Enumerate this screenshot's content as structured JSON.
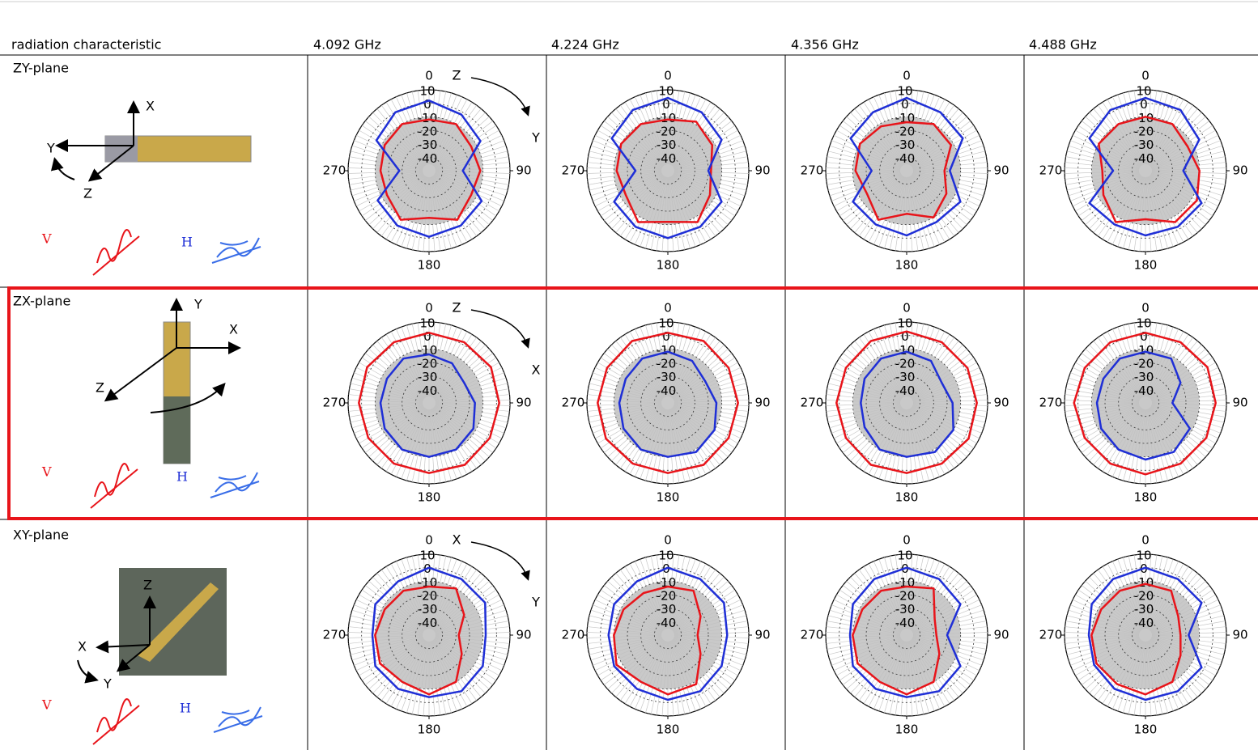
{
  "table": {
    "header": [
      "radiation characteristic",
      "4.092  GHz",
      "4.224  GHz",
      "4.356  GHz",
      "4.488  GHz"
    ],
    "rows": [
      {
        "label": "ZY-plane",
        "diagram_labels": [
          "X",
          "Y",
          "Z"
        ]
      },
      {
        "label": "ZX-plane",
        "diagram_labels": [
          "Y",
          "X",
          "Z"
        ]
      },
      {
        "label": "XY-plane",
        "diagram_labels": [
          "Z",
          "X",
          "Y"
        ]
      }
    ]
  },
  "chart_data": [
    {
      "type": "polar",
      "annotations": [
        "Z",
        "Y"
      ],
      "rlim": [
        -50,
        10
      ],
      "rticks": [
        10,
        0,
        -10,
        -20,
        -30,
        -40
      ],
      "thetaticks": [
        0,
        90,
        180,
        270
      ],
      "x": [
        0,
        30,
        60,
        90,
        120,
        150,
        180,
        210,
        240,
        270,
        300,
        330
      ],
      "series": [
        {
          "name": "V",
          "color": "#e8141a",
          "values": [
            -12,
            -10,
            -14,
            -12,
            -14,
            -8,
            -15,
            -8,
            -14,
            -14,
            -12,
            -10
          ]
        },
        {
          "name": "H",
          "color": "#1f2fd6",
          "values": [
            2,
            -2,
            -6,
            -25,
            -5,
            -3,
            -1,
            -3,
            -6,
            -28,
            -5,
            0
          ]
        }
      ]
    },
    {
      "type": "polar",
      "rlim": [
        -50,
        10
      ],
      "rticks": [
        10,
        0,
        -10,
        -20,
        -30,
        -40
      ],
      "thetaticks": [
        0,
        90,
        180,
        270
      ],
      "x": [
        0,
        30,
        60,
        90,
        120,
        150,
        180,
        210,
        240,
        270,
        300,
        330
      ],
      "series": [
        {
          "name": "V",
          "color": "#e8141a",
          "values": [
            -12,
            -8,
            -12,
            -18,
            -14,
            -6,
            -12,
            -6,
            -14,
            -12,
            -10,
            -10
          ]
        },
        {
          "name": "H",
          "color": "#1f2fd6",
          "values": [
            4,
            0,
            -4,
            -20,
            -4,
            -2,
            0,
            -2,
            -4,
            -26,
            -2,
            2
          ]
        }
      ]
    },
    {
      "type": "polar",
      "rlim": [
        -50,
        10
      ],
      "rticks": [
        10,
        0,
        -10,
        -20,
        -30,
        -40
      ],
      "thetaticks": [
        0,
        90,
        180,
        270
      ],
      "x": [
        0,
        30,
        60,
        90,
        120,
        150,
        180,
        210,
        240,
        270,
        300,
        330
      ],
      "series": [
        {
          "name": "V",
          "color": "#e8141a",
          "values": [
            -14,
            -10,
            -12,
            -22,
            -16,
            -10,
            -18,
            -8,
            -16,
            -12,
            -10,
            -12
          ]
        },
        {
          "name": "H",
          "color": "#1f2fd6",
          "values": [
            4,
            0,
            -2,
            -18,
            -4,
            -6,
            -2,
            -4,
            -4,
            -24,
            -2,
            0
          ]
        }
      ]
    },
    {
      "type": "polar",
      "rlim": [
        -50,
        10
      ],
      "rticks": [
        10,
        0,
        -10,
        -20,
        -30,
        -40
      ],
      "thetaticks": [
        0,
        90,
        180,
        270
      ],
      "x": [
        0,
        30,
        60,
        90,
        120,
        150,
        180,
        210,
        240,
        270,
        300,
        330
      ],
      "series": [
        {
          "name": "V",
          "color": "#e8141a",
          "values": [
            -10,
            -10,
            -14,
            -10,
            -6,
            -6,
            -14,
            -6,
            -14,
            -18,
            -10,
            -10
          ]
        },
        {
          "name": "H",
          "color": "#1f2fd6",
          "values": [
            4,
            2,
            -4,
            -22,
            -2,
            -2,
            -2,
            -4,
            -2,
            -26,
            -2,
            2
          ]
        }
      ]
    },
    {
      "type": "polar",
      "annotations": [
        "Z",
        "X"
      ],
      "rlim": [
        -50,
        10
      ],
      "rticks": [
        10,
        0,
        -10,
        -20,
        -30,
        -40
      ],
      "thetaticks": [
        0,
        90,
        180,
        270
      ],
      "x": [
        0,
        30,
        60,
        90,
        120,
        150,
        180,
        210,
        240,
        270,
        300,
        330
      ],
      "series": [
        {
          "name": "V",
          "color": "#e8141a",
          "values": [
            2,
            2,
            3,
            2,
            2,
            3,
            2,
            2,
            2,
            2,
            3,
            2
          ]
        },
        {
          "name": "H",
          "color": "#1f2fd6",
          "values": [
            -14,
            -16,
            -20,
            -16,
            -12,
            -10,
            -10,
            -10,
            -12,
            -14,
            -14,
            -12
          ]
        }
      ]
    },
    {
      "type": "polar",
      "rlim": [
        -50,
        10
      ],
      "rticks": [
        10,
        0,
        -10,
        -20,
        -30,
        -40
      ],
      "thetaticks": [
        0,
        90,
        180,
        270
      ],
      "x": [
        0,
        30,
        60,
        90,
        120,
        150,
        180,
        210,
        240,
        270,
        300,
        330
      ],
      "series": [
        {
          "name": "V",
          "color": "#e8141a",
          "values": [
            2,
            3,
            2,
            2,
            2,
            3,
            2,
            2,
            3,
            2,
            2,
            3
          ]
        },
        {
          "name": "H",
          "color": "#1f2fd6",
          "values": [
            -12,
            -14,
            -18,
            -14,
            -10,
            -8,
            -10,
            -10,
            -12,
            -14,
            -14,
            -12
          ]
        }
      ]
    },
    {
      "type": "polar",
      "rlim": [
        -50,
        10
      ],
      "rticks": [
        10,
        0,
        -10,
        -20,
        -30,
        -40
      ],
      "thetaticks": [
        0,
        90,
        180,
        270
      ],
      "x": [
        0,
        30,
        60,
        90,
        120,
        150,
        180,
        210,
        240,
        270,
        300,
        330
      ],
      "series": [
        {
          "name": "V",
          "color": "#e8141a",
          "values": [
            3,
            2,
            2,
            2,
            3,
            2,
            2,
            3,
            2,
            2,
            2,
            3
          ]
        },
        {
          "name": "H",
          "color": "#1f2fd6",
          "values": [
            -12,
            -14,
            -20,
            -16,
            -10,
            -8,
            -10,
            -10,
            -14,
            -16,
            -14,
            -12
          ]
        }
      ]
    },
    {
      "type": "polar",
      "rlim": [
        -50,
        10
      ],
      "rticks": [
        10,
        0,
        -10,
        -20,
        -30,
        -40
      ],
      "thetaticks": [
        0,
        90,
        180,
        270
      ],
      "x": [
        0,
        30,
        60,
        90,
        120,
        150,
        180,
        210,
        240,
        270,
        300,
        330
      ],
      "series": [
        {
          "name": "V",
          "color": "#e8141a",
          "values": [
            2,
            2,
            3,
            2,
            2,
            2,
            3,
            2,
            2,
            3,
            2,
            2
          ]
        },
        {
          "name": "H",
          "color": "#1f2fd6",
          "values": [
            -12,
            -12,
            -20,
            -30,
            -12,
            -8,
            -8,
            -10,
            -12,
            -14,
            -14,
            -12
          ]
        }
      ]
    },
    {
      "type": "polar",
      "annotations": [
        "X",
        "Y"
      ],
      "rlim": [
        -50,
        10
      ],
      "rticks": [
        10,
        0,
        -10,
        -20,
        -30,
        -40
      ],
      "thetaticks": [
        0,
        90,
        180,
        270
      ],
      "x": [
        0,
        30,
        60,
        90,
        120,
        150,
        180,
        210,
        240,
        270,
        300,
        330
      ],
      "series": [
        {
          "name": "V",
          "color": "#e8141a",
          "values": [
            -14,
            -10,
            -20,
            -28,
            -22,
            -10,
            -6,
            -10,
            -8,
            -10,
            -12,
            -12
          ]
        },
        {
          "name": "H",
          "color": "#1f2fd6",
          "values": [
            0,
            -2,
            -2,
            -8,
            -4,
            -2,
            -4,
            -4,
            -4,
            -8,
            -4,
            -4
          ]
        }
      ]
    },
    {
      "type": "polar",
      "rlim": [
        -50,
        10
      ],
      "rticks": [
        10,
        0,
        -10,
        -20,
        -30,
        -40
      ],
      "thetaticks": [
        0,
        90,
        180,
        270
      ],
      "x": [
        0,
        30,
        60,
        90,
        120,
        150,
        180,
        210,
        240,
        270,
        300,
        330
      ],
      "series": [
        {
          "name": "V",
          "color": "#e8141a",
          "values": [
            -14,
            -12,
            -22,
            -28,
            -22,
            -8,
            -6,
            -10,
            -6,
            -10,
            -12,
            -14
          ]
        },
        {
          "name": "H",
          "color": "#1f2fd6",
          "values": [
            0,
            -2,
            -2,
            -6,
            -4,
            -2,
            -2,
            -4,
            -4,
            -6,
            -4,
            -4
          ]
        }
      ]
    },
    {
      "type": "polar",
      "rlim": [
        -50,
        10
      ],
      "rticks": [
        10,
        0,
        -10,
        -20,
        -30,
        -40
      ],
      "thetaticks": [
        0,
        90,
        180,
        270
      ],
      "x": [
        0,
        30,
        60,
        90,
        120,
        150,
        180,
        210,
        240,
        270,
        300,
        330
      ],
      "series": [
        {
          "name": "V",
          "color": "#e8141a",
          "values": [
            -14,
            -10,
            -26,
            -28,
            -22,
            -10,
            -6,
            -10,
            -8,
            -10,
            -12,
            -12
          ]
        },
        {
          "name": "H",
          "color": "#1f2fd6",
          "values": [
            0,
            -2,
            -4,
            -20,
            -4,
            -2,
            -4,
            -4,
            -4,
            -8,
            -4,
            -2
          ]
        }
      ]
    },
    {
      "type": "polar",
      "rlim": [
        -50,
        10
      ],
      "rticks": [
        10,
        0,
        -10,
        -20,
        -30,
        -40
      ],
      "thetaticks": [
        0,
        90,
        180,
        270
      ],
      "x": [
        0,
        30,
        60,
        90,
        120,
        150,
        180,
        210,
        240,
        270,
        300,
        330
      ],
      "series": [
        {
          "name": "V",
          "color": "#e8141a",
          "values": [
            -12,
            -12,
            -22,
            -24,
            -20,
            -10,
            -6,
            -8,
            -8,
            -10,
            -12,
            -12
          ]
        },
        {
          "name": "H",
          "color": "#1f2fd6",
          "values": [
            0,
            -2,
            -2,
            -18,
            -2,
            -2,
            -2,
            -4,
            -6,
            -8,
            -4,
            -2
          ]
        }
      ]
    }
  ]
}
